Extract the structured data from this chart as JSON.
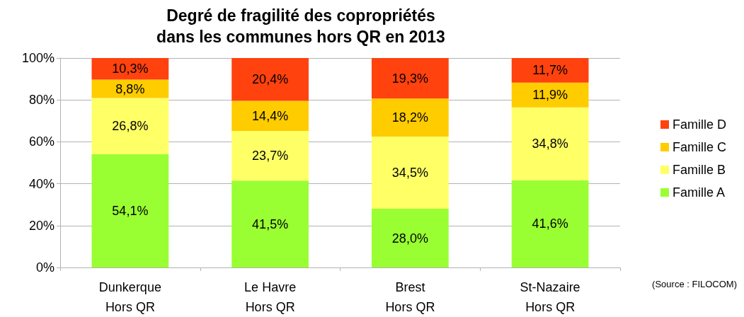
{
  "chart_data": {
    "type": "bar",
    "title": "Degré de fragilité des copropriétés\ndans les communes hors QR en 2013",
    "categories": [
      "Dunkerque\nHors QR",
      "Le Havre\nHors QR",
      "Brest\nHors QR",
      "St-Nazaire\nHors QR"
    ],
    "stacked": true,
    "series": [
      {
        "name": "Famille A",
        "color": "#99ff33",
        "values": [
          54.1,
          41.5,
          28.0,
          41.6
        ],
        "value_labels": [
          "54,1%",
          "41,5%",
          "28,0%",
          "41,6%"
        ]
      },
      {
        "name": "Famille B",
        "color": "#ffff66",
        "values": [
          26.8,
          23.7,
          34.5,
          34.8
        ],
        "value_labels": [
          "26,8%",
          "23,7%",
          "34,5%",
          "34,8%"
        ]
      },
      {
        "name": "Famille C",
        "color": "#ffcc00",
        "values": [
          8.8,
          14.4,
          18.2,
          11.9
        ],
        "value_labels": [
          "8,8%",
          "14,4%",
          "18,2%",
          "11,9%"
        ]
      },
      {
        "name": "Famille D",
        "color": "#ff420e",
        "values": [
          10.3,
          20.4,
          19.3,
          11.7
        ],
        "value_labels": [
          "10,3%",
          "20,4%",
          "19,3%",
          "11,7%"
        ]
      }
    ],
    "ylim": [
      0,
      100
    ],
    "yticks": [
      {
        "value": 0,
        "label": "0%"
      },
      {
        "value": 20,
        "label": "20%"
      },
      {
        "value": 40,
        "label": "40%"
      },
      {
        "value": 60,
        "label": "60%"
      },
      {
        "value": 80,
        "label": "80%"
      },
      {
        "value": 100,
        "label": "100%"
      }
    ],
    "grid": "y",
    "legend": "right",
    "annotations": [
      "(Source : FILOCOM)"
    ]
  }
}
